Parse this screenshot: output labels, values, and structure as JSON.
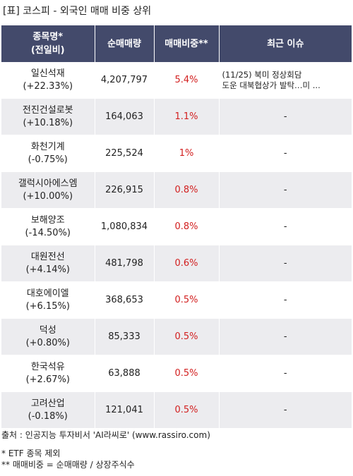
{
  "title": "[표] 코스피 - 외국인 매매 비중 상위",
  "table": {
    "headers": {
      "name_line1": "종목명*",
      "name_line2": "(전일비)",
      "volume": "순매매량",
      "ratio": "매매비중**",
      "issue": "최근 이슈"
    },
    "rows": [
      {
        "name": "일신석재",
        "change": "(+22.33%)",
        "volume": "4,207,797",
        "ratio": "5.4%",
        "issue_line1": "(11/25) 북미 정상회담",
        "issue_line2": "도운 대북협상가 발탁…미 ..."
      },
      {
        "name": "전진건설로봇",
        "change": "(+10.18%)",
        "volume": "164,063",
        "ratio": "1.1%",
        "issue": "-"
      },
      {
        "name": "화천기계",
        "change": "(-0.75%)",
        "volume": "225,524",
        "ratio": "1%",
        "issue": "-"
      },
      {
        "name": "갤럭시아에스엠",
        "change": "(+10.00%)",
        "volume": "226,915",
        "ratio": "0.8%",
        "issue": "-"
      },
      {
        "name": "보해양조",
        "change": "(-14.50%)",
        "volume": "1,080,834",
        "ratio": "0.8%",
        "issue": "-"
      },
      {
        "name": "대원전선",
        "change": "(+4.14%)",
        "volume": "481,798",
        "ratio": "0.6%",
        "issue": "-"
      },
      {
        "name": "대호에이엘",
        "change": "(+6.15%)",
        "volume": "368,653",
        "ratio": "0.5%",
        "issue": "-"
      },
      {
        "name": "덕성",
        "change": "(+0.80%)",
        "volume": "85,333",
        "ratio": "0.5%",
        "issue": "-"
      },
      {
        "name": "한국석유",
        "change": "(+2.67%)",
        "volume": "63,888",
        "ratio": "0.5%",
        "issue": "-"
      },
      {
        "name": "고려산업",
        "change": "(-0.18%)",
        "volume": "121,041",
        "ratio": "0.5%",
        "issue": "-"
      }
    ]
  },
  "footer": {
    "source": "출처 : 인공지능 투자비서 'AI라씨로' (www.rassiro.com)",
    "note1": "* ETF 종목 제외",
    "note2": "** 매매비중 = 순매매량 / 상장주식수"
  },
  "colors": {
    "header_bg": "#434a6b",
    "ratio_text": "#d21f1f",
    "row_alt_bg": "#ececef"
  }
}
